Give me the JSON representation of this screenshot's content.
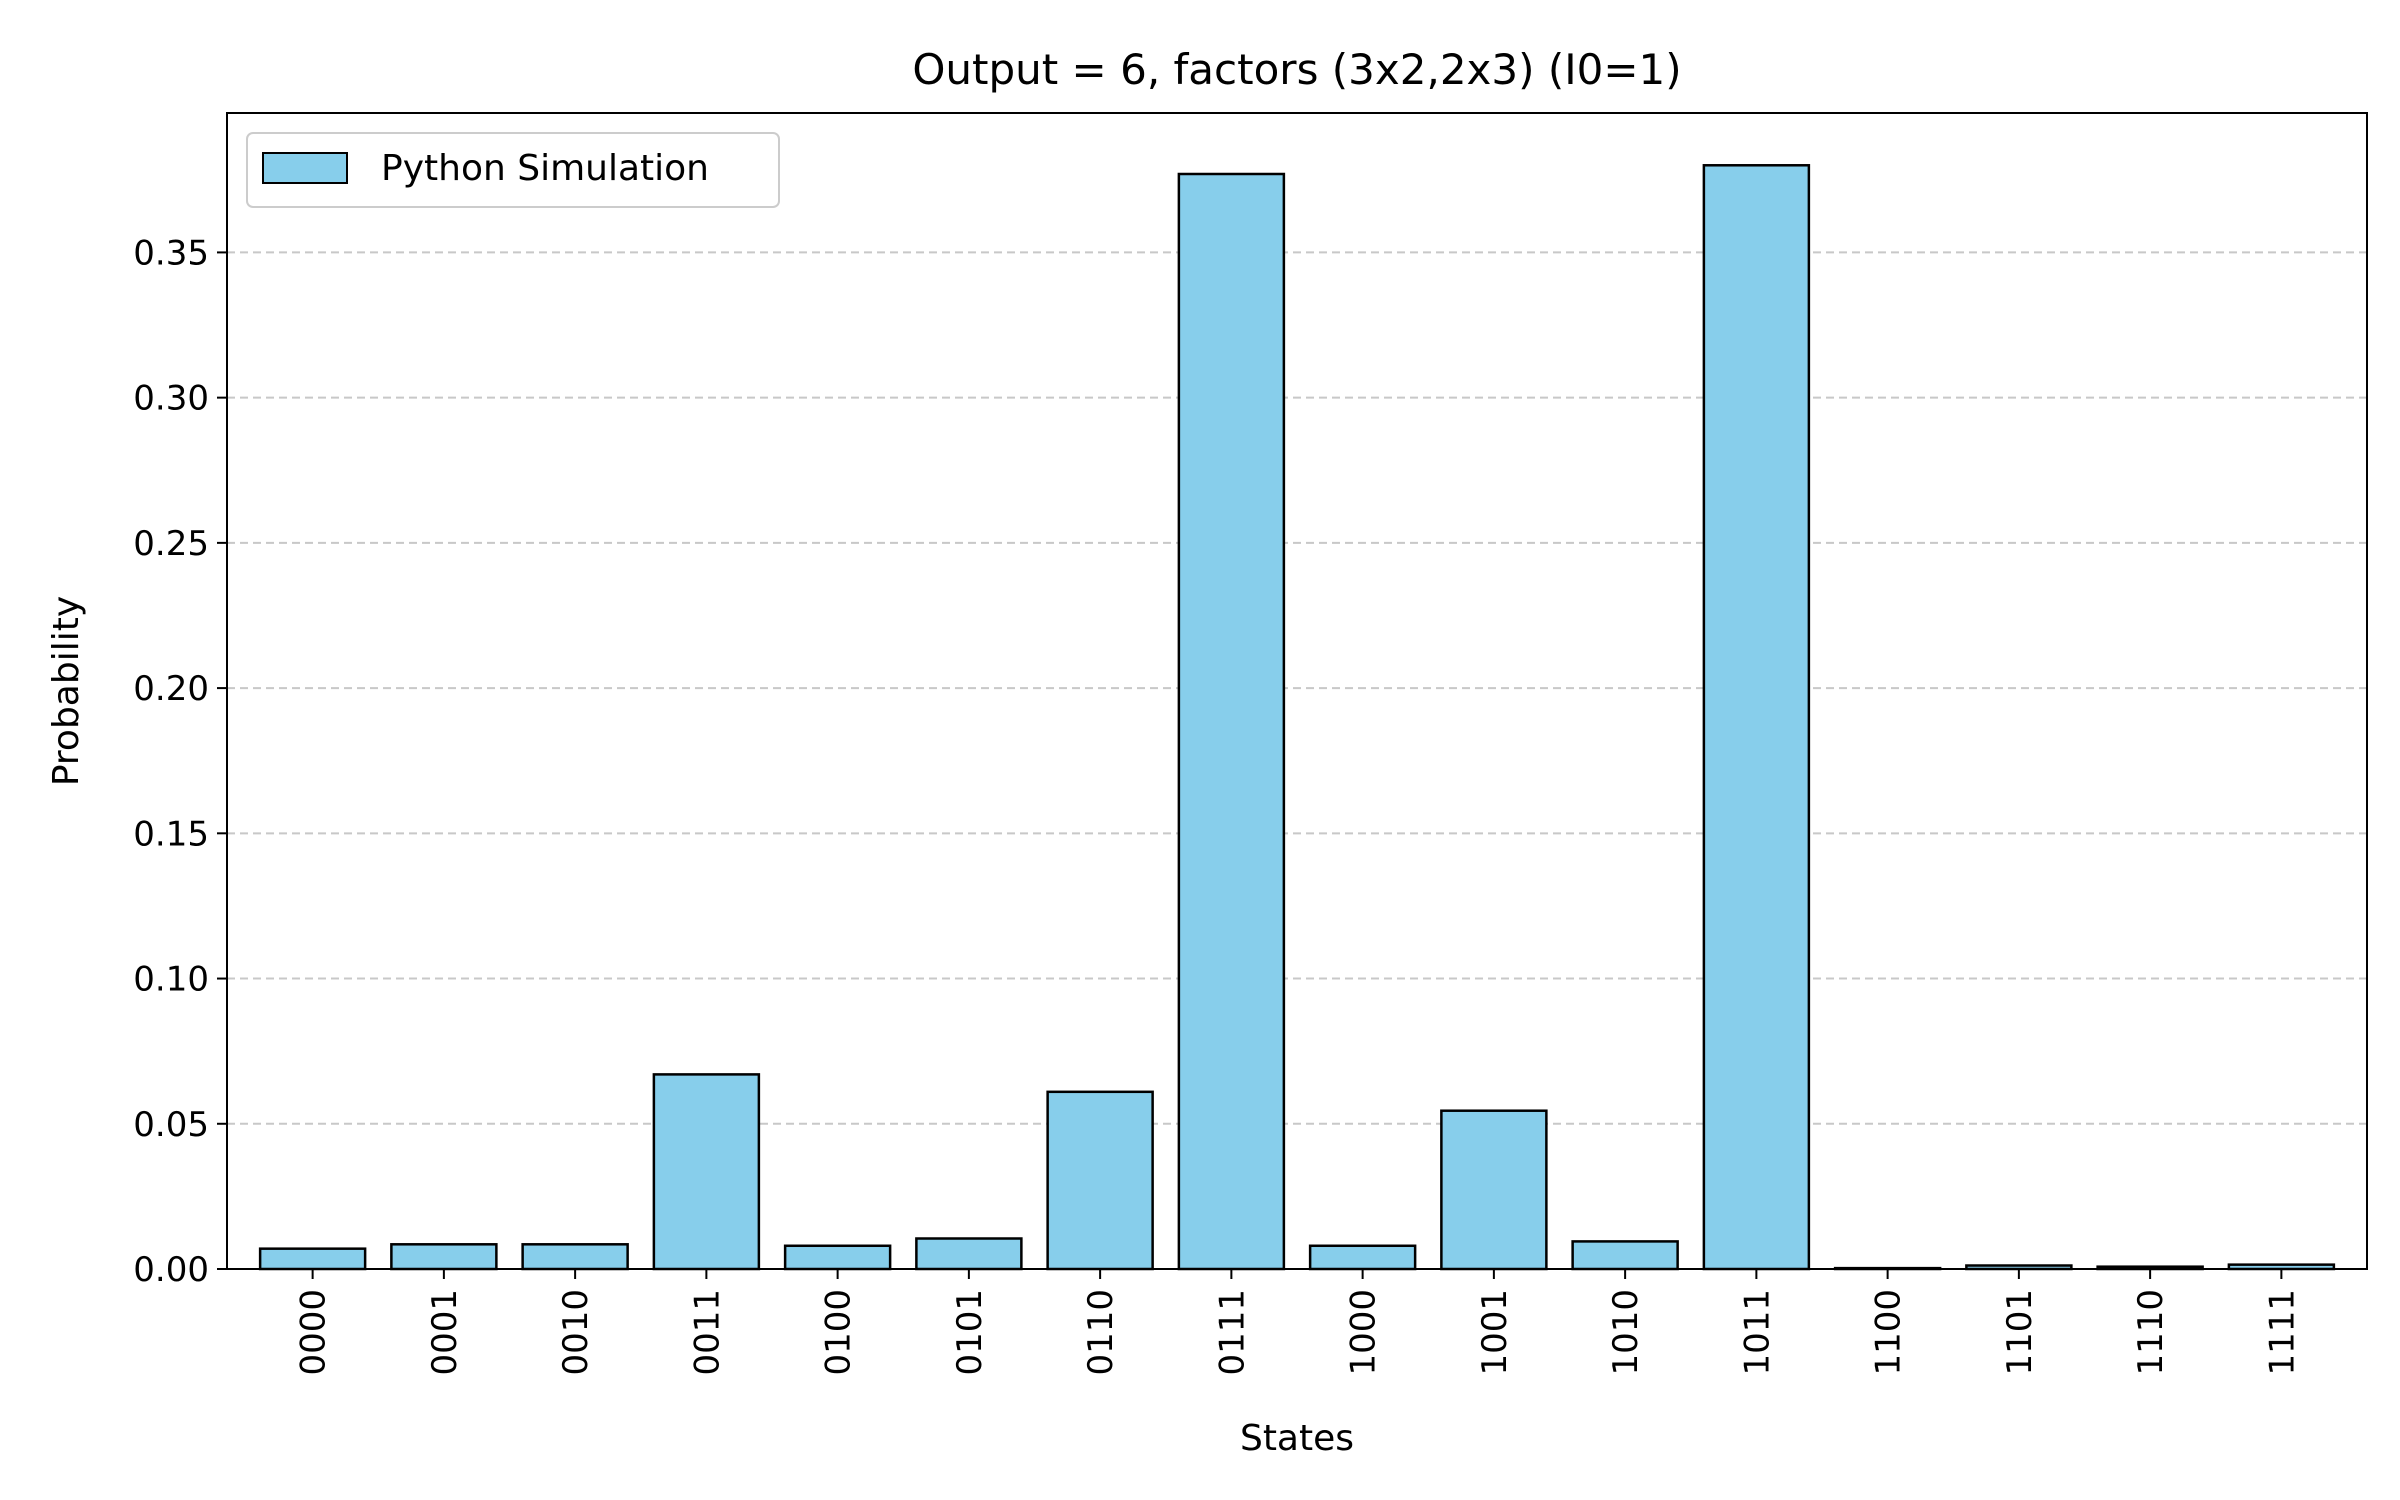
{
  "chart_data": {
    "type": "bar",
    "title": "Output = 6, factors (3x2,2x3) (I0=1)",
    "xlabel": "States",
    "ylabel": "Probability",
    "categories": [
      "0000",
      "0001",
      "0010",
      "0011",
      "0100",
      "0101",
      "0110",
      "0111",
      "1000",
      "1001",
      "1010",
      "1011",
      "1100",
      "1101",
      "1110",
      "1111"
    ],
    "highlighted_categories": [
      "0111",
      "1011"
    ],
    "series": [
      {
        "name": "Python Simulation",
        "values": [
          0.007,
          0.0085,
          0.0085,
          0.067,
          0.008,
          0.0105,
          0.061,
          0.377,
          0.008,
          0.0545,
          0.0095,
          0.38,
          0.0003,
          0.0012,
          0.0008,
          0.0015
        ]
      }
    ],
    "ylim": [
      0,
      0.398
    ],
    "yticks": [
      "0.00",
      "0.05",
      "0.10",
      "0.15",
      "0.20",
      "0.25",
      "0.30",
      "0.35"
    ],
    "grid": "y-dashed",
    "legend_position": "top-left",
    "colors": {
      "bar_fill": "#87CEEB",
      "bar_edge": "#000000",
      "highlight_label": "#ff0000",
      "grid": "#c8c8c8"
    }
  }
}
